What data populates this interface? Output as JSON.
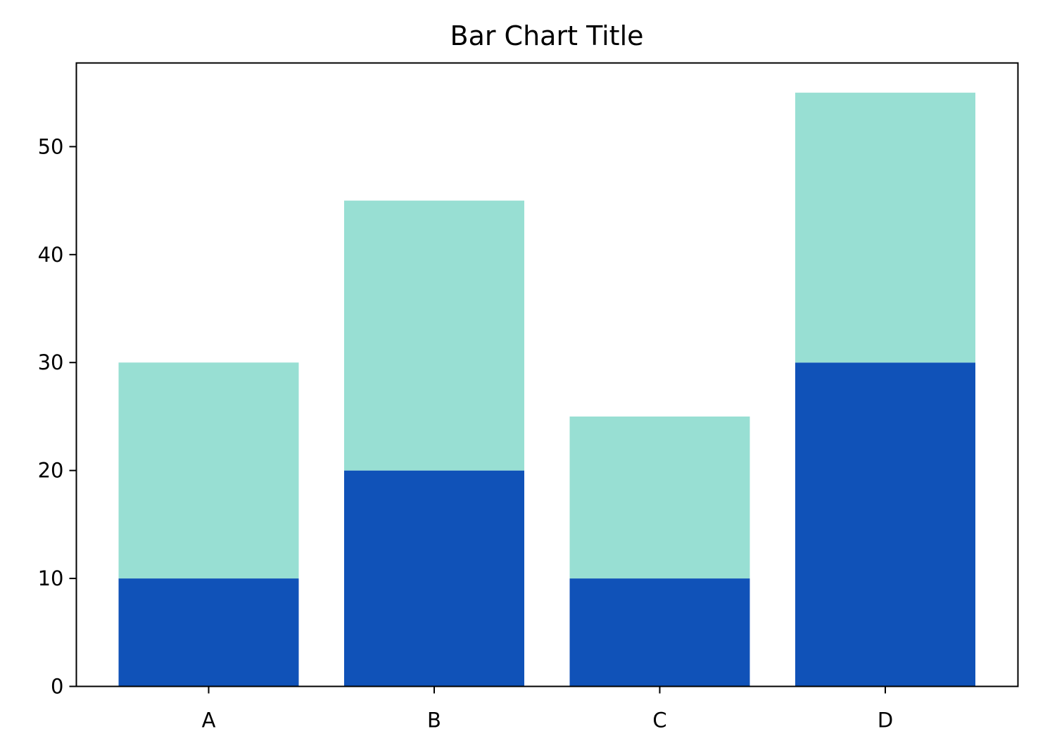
{
  "chart_data": {
    "type": "bar",
    "stacked": true,
    "title": "Bar Chart Title",
    "xlabel": "",
    "ylabel": "",
    "categories": [
      "A",
      "B",
      "C",
      "D"
    ],
    "series": [
      {
        "values": [
          10,
          20,
          10,
          30
        ],
        "color": "#1052b8"
      },
      {
        "values": [
          20,
          25,
          15,
          25
        ],
        "color": "#98dfd3"
      }
    ],
    "ylim": [
      0,
      57.75
    ],
    "yticks": [
      0,
      10,
      20,
      30,
      40,
      50
    ],
    "grid": false,
    "legend": "none"
  }
}
